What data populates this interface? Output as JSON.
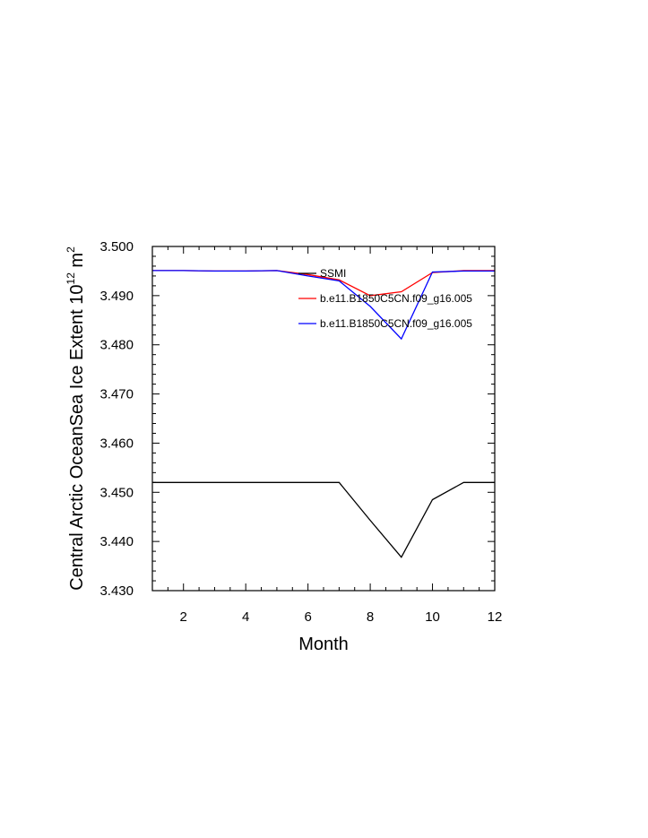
{
  "chart_data": {
    "type": "line",
    "xlabel": "Month",
    "ylabel": {
      "main": "Central Arctic OceanSea Ice Extent 10",
      "exponent": "12",
      "unit": " m",
      "unit_exponent": "2"
    },
    "xlim": [
      1,
      12
    ],
    "ylim": [
      3.43,
      3.5
    ],
    "xticks": [
      2,
      4,
      6,
      8,
      10,
      12
    ],
    "yticks": [
      3.43,
      3.44,
      3.45,
      3.46,
      3.47,
      3.48,
      3.49,
      3.5
    ],
    "ytick_labels": [
      "3.430",
      "3.440",
      "3.450",
      "3.460",
      "3.470",
      "3.480",
      "3.490",
      "3.500"
    ],
    "legend_position": "top-right",
    "series": [
      {
        "name": "SSMI",
        "color": "#000000",
        "x": [
          1,
          2,
          3,
          4,
          5,
          6,
          7,
          8,
          9,
          10,
          11,
          12
        ],
        "values": [
          3.452,
          3.452,
          3.452,
          3.452,
          3.452,
          3.452,
          3.452,
          3.4443,
          3.4368,
          3.4485,
          3.452,
          3.452
        ]
      },
      {
        "name": "b.e11.B1850C5CN.f09_g16.005",
        "color": "#ff0000",
        "x": [
          1,
          2,
          3,
          4,
          5,
          6,
          7,
          8,
          9,
          10,
          11,
          12
        ],
        "values": [
          3.4951,
          3.4951,
          3.495,
          3.495,
          3.4951,
          3.4943,
          3.4932,
          3.49,
          3.4908,
          3.4947,
          3.4951,
          3.4951
        ]
      },
      {
        "name": "b.e11.B1850C5CN.f09_g16.005",
        "color": "#0000ff",
        "x": [
          1,
          2,
          3,
          4,
          5,
          6,
          7,
          8,
          9,
          10,
          11,
          12
        ],
        "values": [
          3.4951,
          3.4951,
          3.495,
          3.495,
          3.4951,
          3.494,
          3.493,
          3.4878,
          3.4812,
          3.4948,
          3.495,
          3.495
        ]
      }
    ]
  }
}
